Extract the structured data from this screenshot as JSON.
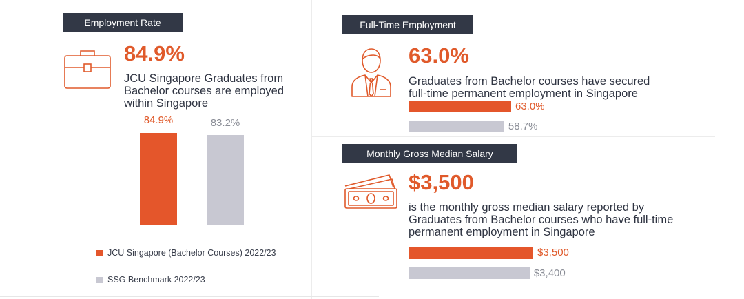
{
  "employment_rate": {
    "tag": "Employment Rate",
    "headline": "84.9%",
    "desc_lines": [
      "JCU Singapore Graduates from",
      "Bachelor courses are employed",
      "within Singapore"
    ],
    "icon": "briefcase-icon"
  },
  "full_time": {
    "tag": "Full-Time Employment",
    "headline": "63.0%",
    "desc_lines": [
      "Graduates from Bachelor courses have secured",
      "full-time permanent employment in Singapore"
    ],
    "icon": "businessman-icon"
  },
  "salary": {
    "tag": "Monthly Gross Median Salary",
    "headline": "$3,500",
    "desc_lines": [
      "is the monthly gross median salary reported by",
      "Graduates from Bachelor courses who have full-time",
      "permanent employment in Singapore"
    ],
    "icon": "banknotes-icon"
  },
  "legend": {
    "jcu": "JCU Singapore (Bachelor Courses) 2022/23",
    "ssg": "SSG Benchmark 2022/23"
  },
  "colors": {
    "jcu": "#e4562b",
    "ssg": "#c8c8d2",
    "tag_bg": "#323846",
    "accent": "#e05a2b"
  },
  "chart_data": [
    {
      "type": "bar",
      "orientation": "vertical",
      "categories": [
        "JCU Singapore (Bachelor Courses) 2022/23",
        "SSG Benchmark 2022/23"
      ],
      "values": [
        84.9,
        83.2
      ],
      "value_labels": [
        "84.9%",
        "83.2%"
      ]
    },
    {
      "type": "bar",
      "orientation": "horizontal",
      "categories": [
        "JCU Singapore (Bachelor Courses) 2022/23",
        "SSG Benchmark 2022/23"
      ],
      "values": [
        63.0,
        58.7
      ],
      "value_labels": [
        "63.0%",
        "58.7%"
      ]
    },
    {
      "type": "bar",
      "orientation": "horizontal",
      "categories": [
        "JCU Singapore (Bachelor Courses) 2022/23",
        "SSG Benchmark 2022/23"
      ],
      "values": [
        3500,
        3400
      ],
      "value_labels": [
        "$3,500",
        "$3,400"
      ]
    }
  ]
}
